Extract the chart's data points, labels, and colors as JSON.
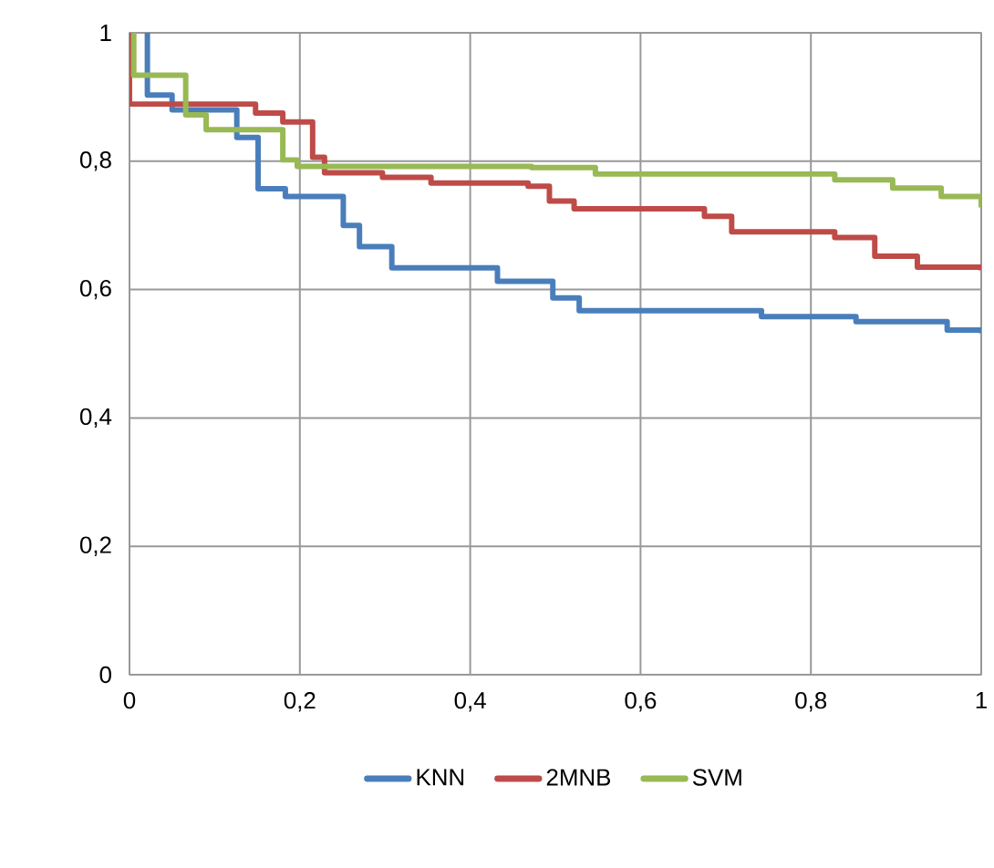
{
  "chart_data": {
    "type": "step",
    "xlim": [
      0,
      1
    ],
    "ylim": [
      0,
      1
    ],
    "xticks": [
      0,
      {
        "value": 0.2,
        "label": "0,2"
      },
      {
        "value": 0.4,
        "label": "0,4"
      },
      {
        "value": 0.6,
        "label": "0,6"
      },
      {
        "value": 0.8,
        "label": "0,8"
      },
      1
    ],
    "yticks": [
      0,
      {
        "value": 0.2,
        "label": "0,2"
      },
      {
        "value": 0.4,
        "label": "0,4"
      },
      {
        "value": 0.6,
        "label": "0,6"
      },
      {
        "value": 0.8,
        "label": "0,8"
      },
      1
    ],
    "grid": true,
    "legend": "bottom",
    "marker": "none",
    "line_style": "solid",
    "series": [
      {
        "name": "KNN",
        "color": "#4a7ebb",
        "x": [
          0.021,
          0.021,
          0.05,
          0.126,
          0.151,
          0.183,
          0.251,
          0.27,
          0.308,
          0.432,
          0.497,
          0.528,
          0.742,
          0.853,
          0.96,
          1
        ],
        "values": [
          1,
          0.903,
          0.88,
          0.837,
          0.757,
          0.745,
          0.7,
          0.667,
          0.634,
          0.613,
          0.587,
          0.567,
          0.558,
          0.55,
          0.537,
          0.532
        ]
      },
      {
        "name": "2MNB",
        "color": "#be4b48",
        "x": [
          0,
          0,
          0.148,
          0.18,
          0.215,
          0.229,
          0.297,
          0.354,
          0.468,
          0.493,
          0.522,
          0.675,
          0.707,
          0.828,
          0.875,
          0.925,
          1
        ],
        "values": [
          1,
          0.889,
          0.875,
          0.861,
          0.806,
          0.782,
          0.775,
          0.766,
          0.761,
          0.738,
          0.726,
          0.714,
          0.69,
          0.681,
          0.652,
          0.635,
          0.63
        ]
      },
      {
        "name": "SVM",
        "color": "#98b954",
        "x": [
          0.005,
          0.005,
          0.066,
          0.09,
          0.18,
          0.197,
          0.472,
          0.547,
          0.828,
          0.896,
          0.953,
          1
        ],
        "values": [
          1,
          0.934,
          0.872,
          0.849,
          0.802,
          0.792,
          0.79,
          0.78,
          0.771,
          0.758,
          0.745,
          0.728
        ]
      }
    ]
  }
}
